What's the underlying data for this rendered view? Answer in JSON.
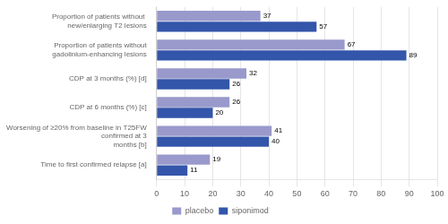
{
  "chart_data": {
    "type": "bar",
    "orientation": "horizontal",
    "categories": [
      "Proportion of patients without  new/enlarging T2 lesions",
      "Proportion of patients without gadolinium-enhancing lesions",
      "CDP at 3 months (%) [d]",
      "CDP at 6 months (%) [c]",
      "Worsening of ≥20% from baseline in T25FW confirmed at 3\nmonths [b]",
      "Time to first confirmed relapse [a]"
    ],
    "series": [
      {
        "name": "placebo",
        "color": "#9999cc",
        "values": [
          37,
          67,
          32,
          26,
          41,
          19
        ]
      },
      {
        "name": "siponimod",
        "color": "#3355aa",
        "values": [
          57,
          89,
          26,
          20,
          40,
          11
        ]
      }
    ],
    "xlim": [
      0,
      100
    ],
    "xticks": [
      0,
      10,
      20,
      30,
      40,
      50,
      60,
      70,
      80,
      90,
      100
    ],
    "grid": true,
    "data_labels": true,
    "legend": "bottom"
  }
}
